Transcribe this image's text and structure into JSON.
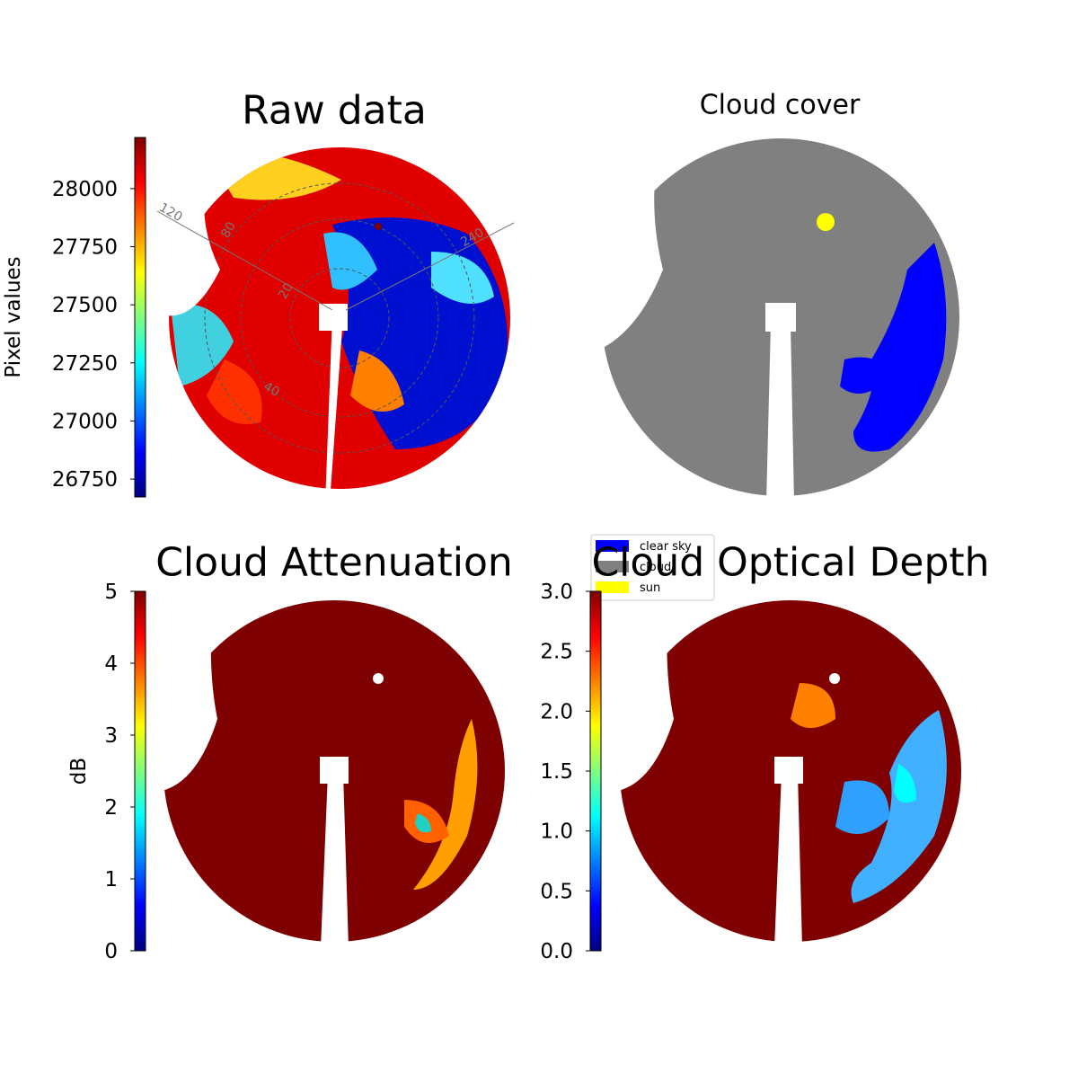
{
  "chart_data": [
    {
      "type": "heatmap",
      "title": "Raw data",
      "colorbar_label": "Pixel values",
      "colormap": "jet",
      "clim": [
        26673,
        28220
      ],
      "cticks": [
        26750,
        27000,
        27250,
        27500,
        27750,
        28000
      ],
      "annotations": [
        "120",
        "80",
        "240",
        "40",
        "20"
      ]
    },
    {
      "type": "categorical",
      "title": "Cloud cover",
      "series": [
        {
          "name": "clear sky",
          "color": "#0000ff"
        },
        {
          "name": "cloud",
          "color": "#808080"
        },
        {
          "name": "sun",
          "color": "#ffff00"
        }
      ]
    },
    {
      "type": "heatmap",
      "title": "Cloud Attenuation",
      "colorbar_label": "dB",
      "colormap": "jet",
      "clim": [
        0,
        5
      ],
      "cticks": [
        0,
        1,
        2,
        3,
        4,
        5
      ]
    },
    {
      "type": "heatmap",
      "title": "Cloud Optical Depth",
      "colormap": "jet",
      "clim": [
        0,
        3.0
      ],
      "cticks": [
        {
          "value": 0,
          "label": "0.0"
        },
        0.5,
        {
          "value": 1,
          "label": "1.0"
        },
        1.5,
        {
          "value": 2,
          "label": "2.0"
        },
        2.5,
        {
          "value": 3,
          "label": "3.0"
        }
      ]
    }
  ]
}
